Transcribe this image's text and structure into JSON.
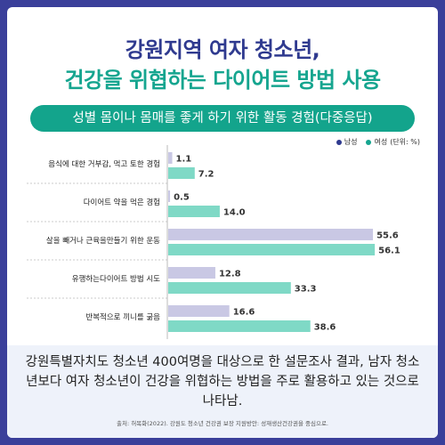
{
  "title_line1": "강원지역 여자 청소년,",
  "title_line2": "건강을 위협하는 다이어트 방법 사용",
  "colors": {
    "male": "#c9c8e4",
    "female": "#7fd9c6",
    "male_legend": "#2f3a8f",
    "female_legend": "#15a58f",
    "accent": "#13a48c",
    "navy": "#2f3a8f"
  },
  "chart_data": {
    "type": "bar",
    "orientation": "horizontal",
    "title": "성별 몸이나 몸매를 좋게 하기 위한 활동 경험(다중응답)",
    "unit_label": "(단위: %)",
    "categories": [
      "음식에 대한 거부감, 먹고 토한 경험",
      "다이어트 약을 먹은 경험",
      "살을 빼거나 근육을만들기  위한 운동",
      "유행하는다이어트  방법 시도",
      "반복적으로 끼니를 굶음"
    ],
    "series": [
      {
        "name": "남성",
        "values": [
          1.1,
          0.5,
          55.6,
          12.8,
          16.6
        ]
      },
      {
        "name": "여성",
        "values": [
          7.2,
          14.0,
          56.1,
          33.3,
          38.6
        ]
      }
    ],
    "value_labels": {
      "남성": [
        "1.1",
        "0.5",
        "55.6",
        "12.8",
        "16.6"
      ],
      "여성": [
        "7.2",
        "14.0",
        "56.1",
        "33.3",
        "38.6"
      ]
    },
    "xlim": [
      0,
      58
    ],
    "legend_position": "top-right"
  },
  "footer": {
    "text": "강원특별자치도 청소년 400여명을 대상으로 한 설문조사 결과, 남자 청소년보다 여자 청소년이 건강을 위협하는 방법을 주로 활용하고 있는 것으로 나타남.",
    "source": "출처: 허목화(2022). 강원도 청소년 건강권 보장 지원방안: 성재생산건강권을 중심으로."
  }
}
